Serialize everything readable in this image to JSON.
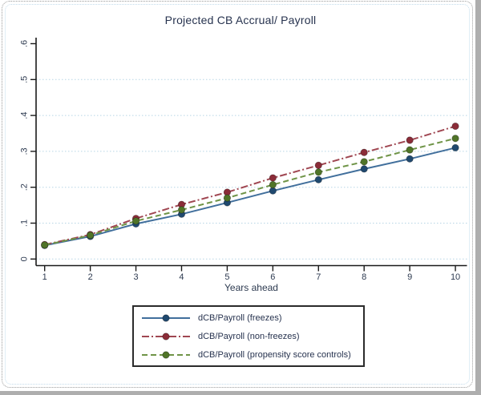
{
  "chart_data": {
    "type": "line",
    "title": "Projected CB Accrual/ Payroll",
    "xlabel": "Years ahead",
    "ylabel": "",
    "x": [
      1,
      2,
      3,
      4,
      5,
      6,
      7,
      8,
      9,
      10
    ],
    "xtick_labels": [
      "1",
      "2",
      "3",
      "4",
      "5",
      "6",
      "7",
      "8",
      "9",
      "10"
    ],
    "ylim": [
      0,
      0.6
    ],
    "ytick_values": [
      0,
      0.1,
      0.2,
      0.3,
      0.4,
      0.5,
      0.6
    ],
    "ytick_labels": [
      "0",
      ".1",
      ".2",
      ".3",
      ".4",
      ".5",
      ".6"
    ],
    "grid": true,
    "gridline_values": [
      0,
      0.1,
      0.2,
      0.3,
      0.4,
      0.5
    ],
    "legend_position": "bottom-center-boxed",
    "series": [
      {
        "name": "dCB/Payroll (freezes)",
        "line_style": "solid",
        "color": "#416f9c",
        "marker_color": "#20496f",
        "values": [
          0.038,
          0.063,
          0.098,
          0.125,
          0.157,
          0.19,
          0.221,
          0.251,
          0.279,
          0.31
        ]
      },
      {
        "name": "dCB/Payroll (non-freezes)",
        "line_style": "dash-dot",
        "color": "#a04752",
        "marker_color": "#8b2c38",
        "values": [
          0.04,
          0.068,
          0.113,
          0.152,
          0.186,
          0.226,
          0.261,
          0.297,
          0.331,
          0.37
        ]
      },
      {
        "name": "dCB/Payroll (propensity score controls)",
        "line_style": "dash",
        "color": "#6f9447",
        "marker_color": "#507428",
        "values": [
          0.039,
          0.066,
          0.106,
          0.137,
          0.17,
          0.207,
          0.242,
          0.271,
          0.304,
          0.336
        ]
      }
    ]
  },
  "colors": {
    "title_text": "#27334f",
    "axis_text": "#2d3a50",
    "axis_line": "#1a1a1a",
    "gridline": "#b7d5e5",
    "legend_border": "#2b2b2b",
    "legend_text": "#27334f",
    "window_edge": "#aeaeae"
  }
}
